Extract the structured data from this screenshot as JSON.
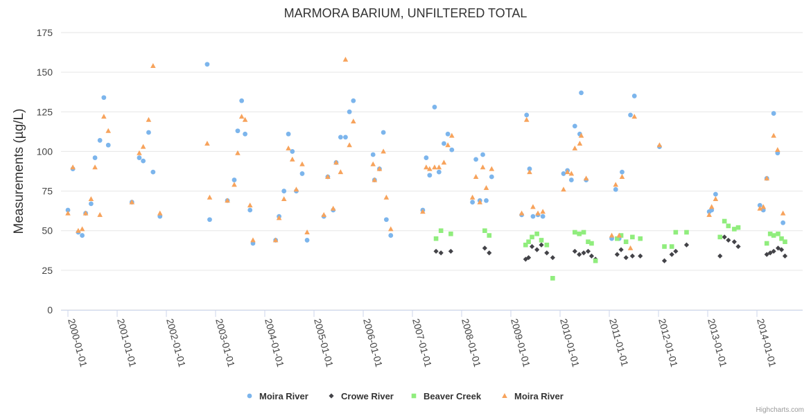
{
  "chart_data": {
    "type": "scatter",
    "title": "MARMORA BARIUM, UNFILTERED TOTAL",
    "xlabel": "",
    "ylabel": "Measurements (µg/L)",
    "xlim": [
      1999.95,
      2014.75
    ],
    "ylim": [
      0,
      175
    ],
    "yticks": [
      0,
      25,
      50,
      75,
      100,
      125,
      150,
      175
    ],
    "xticks": [
      {
        "value": 2000,
        "label": "2000-01-01"
      },
      {
        "value": 2001,
        "label": "2001-01-01"
      },
      {
        "value": 2002,
        "label": "2002-01-01"
      },
      {
        "value": 2003,
        "label": "2003-01-01"
      },
      {
        "value": 2004,
        "label": "2004-01-01"
      },
      {
        "value": 2005,
        "label": "2005-01-01"
      },
      {
        "value": 2006,
        "label": "2006-01-01"
      },
      {
        "value": 2007,
        "label": "2007-01-01"
      },
      {
        "value": 2008,
        "label": "2008-01-01"
      },
      {
        "value": 2009,
        "label": "2009-01-01"
      },
      {
        "value": 2010,
        "label": "2010-01-01"
      },
      {
        "value": 2011,
        "label": "2011-01-01"
      },
      {
        "value": 2012,
        "label": "2012-01-01"
      },
      {
        "value": 2013,
        "label": "2013-01-01"
      },
      {
        "value": 2014,
        "label": "2014-01-01"
      }
    ],
    "grid": true,
    "legend_position": "bottom-center",
    "series": [
      {
        "name": "Moira River",
        "marker": "circle",
        "color": "#7cb5ec",
        "points": [
          [
            2000.0,
            63
          ],
          [
            2000.1,
            89
          ],
          [
            2000.21,
            49
          ],
          [
            2000.29,
            47
          ],
          [
            2000.36,
            61
          ],
          [
            2000.47,
            67
          ],
          [
            2000.55,
            96
          ],
          [
            2000.65,
            107
          ],
          [
            2000.73,
            134
          ],
          [
            2000.82,
            104
          ],
          [
            2001.3,
            68
          ],
          [
            2001.45,
            96
          ],
          [
            2001.53,
            94
          ],
          [
            2001.64,
            112
          ],
          [
            2001.73,
            87
          ],
          [
            2001.87,
            59
          ],
          [
            2002.83,
            155
          ],
          [
            2002.88,
            57
          ],
          [
            2003.24,
            69
          ],
          [
            2003.38,
            82
          ],
          [
            2003.45,
            113
          ],
          [
            2003.53,
            132
          ],
          [
            2003.6,
            111
          ],
          [
            2003.7,
            63
          ],
          [
            2003.76,
            42
          ],
          [
            2004.22,
            44
          ],
          [
            2004.29,
            59
          ],
          [
            2004.39,
            75
          ],
          [
            2004.48,
            111
          ],
          [
            2004.56,
            100
          ],
          [
            2004.64,
            75
          ],
          [
            2004.76,
            86
          ],
          [
            2004.86,
            44
          ],
          [
            2005.2,
            59
          ],
          [
            2005.28,
            84
          ],
          [
            2005.39,
            63
          ],
          [
            2005.45,
            93
          ],
          [
            2005.54,
            109
          ],
          [
            2005.64,
            109
          ],
          [
            2005.72,
            125
          ],
          [
            2005.8,
            132
          ],
          [
            2006.2,
            98
          ],
          [
            2006.23,
            82
          ],
          [
            2006.33,
            89
          ],
          [
            2006.41,
            112
          ],
          [
            2006.47,
            57
          ],
          [
            2006.56,
            47
          ],
          [
            2007.21,
            63
          ],
          [
            2007.28,
            96
          ],
          [
            2007.35,
            85
          ],
          [
            2007.45,
            128
          ],
          [
            2007.54,
            87
          ],
          [
            2007.64,
            105
          ],
          [
            2007.72,
            111
          ],
          [
            2007.8,
            101
          ],
          [
            2008.22,
            68
          ],
          [
            2008.29,
            95
          ],
          [
            2008.37,
            69
          ],
          [
            2008.43,
            98
          ],
          [
            2008.5,
            69
          ],
          [
            2008.61,
            84
          ],
          [
            2009.22,
            60
          ],
          [
            2009.32,
            123
          ],
          [
            2009.38,
            89
          ],
          [
            2009.45,
            59
          ],
          [
            2009.55,
            60
          ],
          [
            2009.65,
            59
          ],
          [
            2010.07,
            86
          ],
          [
            2010.15,
            88
          ],
          [
            2010.23,
            82
          ],
          [
            2010.3,
            116
          ],
          [
            2010.4,
            111
          ],
          [
            2010.43,
            137
          ],
          [
            2010.53,
            82
          ],
          [
            2011.05,
            45
          ],
          [
            2011.13,
            76
          ],
          [
            2011.2,
            45
          ],
          [
            2011.26,
            87
          ],
          [
            2011.43,
            123
          ],
          [
            2011.51,
            135
          ],
          [
            2012.02,
            103
          ],
          [
            2013.03,
            62
          ],
          [
            2013.08,
            63
          ],
          [
            2013.16,
            73
          ],
          [
            2014.06,
            66
          ],
          [
            2014.13,
            63
          ],
          [
            2014.2,
            83
          ],
          [
            2014.34,
            124
          ],
          [
            2014.42,
            99
          ],
          [
            2014.53,
            55
          ]
        ]
      },
      {
        "name": "Crowe River",
        "marker": "diamond",
        "color": "#434348",
        "points": [
          [
            2007.48,
            37
          ],
          [
            2007.58,
            36
          ],
          [
            2007.78,
            37
          ],
          [
            2008.47,
            39
          ],
          [
            2008.56,
            36
          ],
          [
            2009.3,
            32
          ],
          [
            2009.36,
            33
          ],
          [
            2009.43,
            40
          ],
          [
            2009.53,
            38
          ],
          [
            2009.62,
            41
          ],
          [
            2009.73,
            36
          ],
          [
            2009.85,
            33
          ],
          [
            2010.3,
            37
          ],
          [
            2010.39,
            35
          ],
          [
            2010.48,
            36
          ],
          [
            2010.57,
            37
          ],
          [
            2010.64,
            34
          ],
          [
            2010.72,
            32
          ],
          [
            2011.16,
            35
          ],
          [
            2011.24,
            38
          ],
          [
            2011.34,
            33
          ],
          [
            2011.47,
            34
          ],
          [
            2011.63,
            34
          ],
          [
            2012.12,
            31
          ],
          [
            2012.27,
            35
          ],
          [
            2012.35,
            37
          ],
          [
            2012.57,
            41
          ],
          [
            2013.25,
            34
          ],
          [
            2013.34,
            46
          ],
          [
            2013.42,
            44
          ],
          [
            2013.54,
            43
          ],
          [
            2013.62,
            40
          ],
          [
            2014.2,
            35
          ],
          [
            2014.27,
            36
          ],
          [
            2014.34,
            37
          ],
          [
            2014.43,
            39
          ],
          [
            2014.5,
            38
          ],
          [
            2014.57,
            34
          ]
        ]
      },
      {
        "name": "Beaver Creek",
        "marker": "square",
        "color": "#90ed7d",
        "points": [
          [
            2007.48,
            45
          ],
          [
            2007.58,
            50
          ],
          [
            2007.78,
            48
          ],
          [
            2008.47,
            50
          ],
          [
            2008.56,
            47
          ],
          [
            2009.3,
            41
          ],
          [
            2009.36,
            43
          ],
          [
            2009.43,
            46
          ],
          [
            2009.53,
            48
          ],
          [
            2009.62,
            44
          ],
          [
            2009.73,
            41
          ],
          [
            2009.85,
            20
          ],
          [
            2010.3,
            49
          ],
          [
            2010.39,
            48
          ],
          [
            2010.48,
            49
          ],
          [
            2010.57,
            43
          ],
          [
            2010.64,
            42
          ],
          [
            2010.72,
            31
          ],
          [
            2011.16,
            45
          ],
          [
            2011.24,
            47
          ],
          [
            2011.34,
            43
          ],
          [
            2011.47,
            46
          ],
          [
            2011.63,
            45
          ],
          [
            2012.12,
            40
          ],
          [
            2012.27,
            40
          ],
          [
            2012.35,
            49
          ],
          [
            2012.57,
            49
          ],
          [
            2013.25,
            46
          ],
          [
            2013.34,
            56
          ],
          [
            2013.42,
            53
          ],
          [
            2013.54,
            51
          ],
          [
            2013.62,
            52
          ],
          [
            2014.2,
            42
          ],
          [
            2014.27,
            48
          ],
          [
            2014.34,
            47
          ],
          [
            2014.43,
            48
          ],
          [
            2014.5,
            45
          ],
          [
            2014.57,
            43
          ]
        ]
      },
      {
        "name": "Moira River",
        "marker": "triangle",
        "color": "#f7a35c",
        "points": [
          [
            2000.0,
            61
          ],
          [
            2000.1,
            90
          ],
          [
            2000.21,
            50
          ],
          [
            2000.29,
            51
          ],
          [
            2000.36,
            61
          ],
          [
            2000.47,
            70
          ],
          [
            2000.55,
            90
          ],
          [
            2000.65,
            60
          ],
          [
            2000.73,
            122
          ],
          [
            2000.82,
            113
          ],
          [
            2001.3,
            68
          ],
          [
            2001.45,
            99
          ],
          [
            2001.53,
            103
          ],
          [
            2001.64,
            120
          ],
          [
            2001.73,
            154
          ],
          [
            2001.87,
            61
          ],
          [
            2002.83,
            105
          ],
          [
            2002.88,
            71
          ],
          [
            2003.24,
            69
          ],
          [
            2003.38,
            79
          ],
          [
            2003.45,
            99
          ],
          [
            2003.53,
            122
          ],
          [
            2003.6,
            120
          ],
          [
            2003.7,
            66
          ],
          [
            2003.76,
            44
          ],
          [
            2004.22,
            44
          ],
          [
            2004.29,
            58
          ],
          [
            2004.39,
            70
          ],
          [
            2004.48,
            102
          ],
          [
            2004.56,
            95
          ],
          [
            2004.64,
            76
          ],
          [
            2004.76,
            92
          ],
          [
            2004.86,
            49
          ],
          [
            2005.2,
            60
          ],
          [
            2005.28,
            84
          ],
          [
            2005.39,
            64
          ],
          [
            2005.45,
            93
          ],
          [
            2005.54,
            87
          ],
          [
            2005.64,
            158
          ],
          [
            2005.72,
            104
          ],
          [
            2005.8,
            119
          ],
          [
            2006.2,
            92
          ],
          [
            2006.23,
            82
          ],
          [
            2006.33,
            89
          ],
          [
            2006.41,
            100
          ],
          [
            2006.47,
            71
          ],
          [
            2006.56,
            51
          ],
          [
            2007.21,
            62
          ],
          [
            2007.28,
            90
          ],
          [
            2007.35,
            89
          ],
          [
            2007.45,
            90
          ],
          [
            2007.54,
            90
          ],
          [
            2007.64,
            93
          ],
          [
            2007.72,
            104
          ],
          [
            2007.8,
            110
          ],
          [
            2008.22,
            71
          ],
          [
            2008.29,
            84
          ],
          [
            2008.37,
            68
          ],
          [
            2008.43,
            90
          ],
          [
            2008.5,
            77
          ],
          [
            2008.61,
            89
          ],
          [
            2009.22,
            61
          ],
          [
            2009.32,
            120
          ],
          [
            2009.38,
            87
          ],
          [
            2009.45,
            65
          ],
          [
            2009.55,
            61
          ],
          [
            2009.65,
            62
          ],
          [
            2010.07,
            76
          ],
          [
            2010.15,
            87
          ],
          [
            2010.23,
            86
          ],
          [
            2010.3,
            102
          ],
          [
            2010.4,
            105
          ],
          [
            2010.43,
            110
          ],
          [
            2010.53,
            83
          ],
          [
            2011.05,
            47
          ],
          [
            2011.13,
            79
          ],
          [
            2011.2,
            47
          ],
          [
            2011.26,
            84
          ],
          [
            2011.43,
            39
          ],
          [
            2011.51,
            122
          ],
          [
            2012.02,
            104
          ],
          [
            2013.03,
            60
          ],
          [
            2013.08,
            65
          ],
          [
            2013.16,
            70
          ],
          [
            2014.06,
            64
          ],
          [
            2014.13,
            65
          ],
          [
            2014.2,
            83
          ],
          [
            2014.34,
            110
          ],
          [
            2014.42,
            101
          ],
          [
            2014.53,
            61
          ]
        ]
      }
    ]
  },
  "credits": "Highcharts.com"
}
